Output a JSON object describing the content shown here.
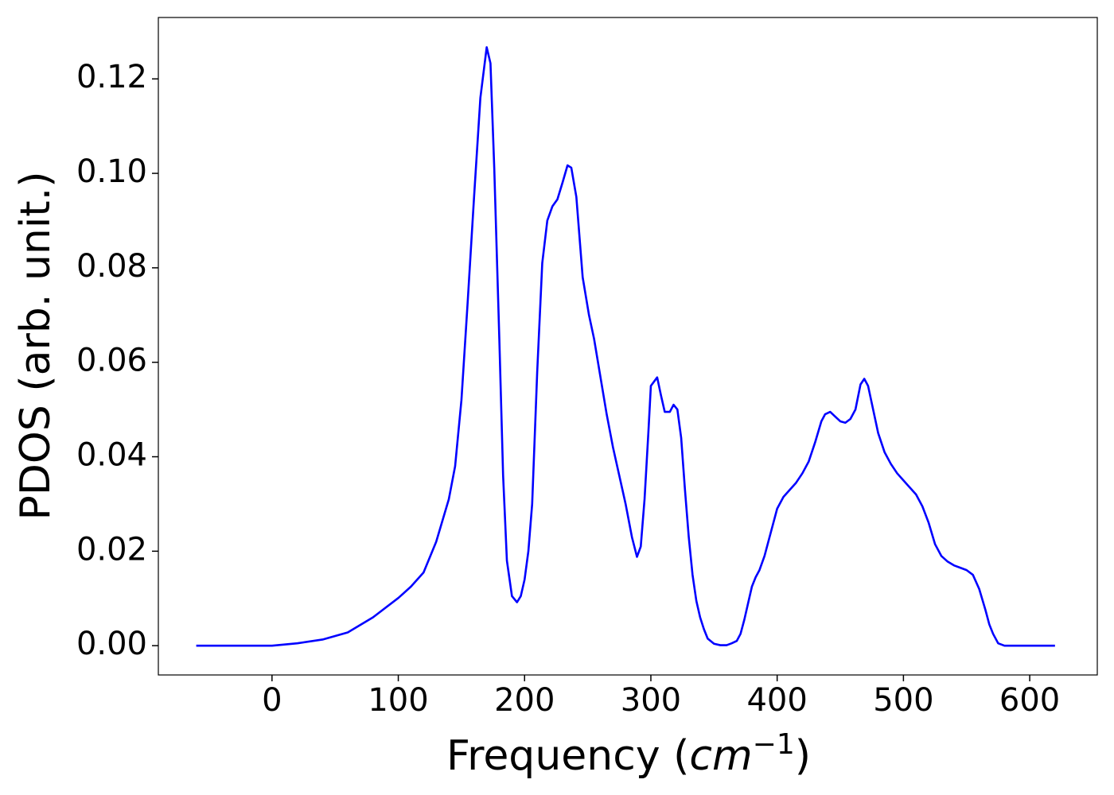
{
  "chart_data": {
    "type": "line",
    "xlabel": [
      "Frequency (",
      "cm",
      "−1",
      ")"
    ],
    "ylabel": "PDOS (arb. unit.)",
    "xlim": [
      -90,
      653.5
    ],
    "ylim": [
      -0.0062,
      0.133
    ],
    "xticks": [
      0,
      100,
      200,
      300,
      400,
      500,
      600
    ],
    "yticks": [
      {
        "value": 0,
        "label": "0.00"
      },
      {
        "value": 0.02,
        "label": "0.02"
      },
      {
        "value": 0.04,
        "label": "0.04"
      },
      {
        "value": 0.06,
        "label": "0.06"
      },
      {
        "value": 0.08,
        "label": "0.08"
      },
      {
        "value": 0.1,
        "label": "0.10"
      },
      {
        "value": 0.12,
        "label": "0.12"
      }
    ],
    "grid": false,
    "series": [
      {
        "color": "#0000ff",
        "x": [
          -60,
          0,
          20,
          40,
          60,
          80,
          100,
          110,
          120,
          130,
          140,
          145,
          150,
          155,
          160,
          165,
          170,
          173,
          176,
          180,
          183,
          186,
          190,
          194,
          197,
          200,
          203,
          206,
          210,
          214,
          218,
          222,
          226,
          230,
          234,
          237,
          241,
          246,
          251,
          255,
          260,
          265,
          270,
          280,
          285,
          289,
          292,
          295,
          298,
          300,
          305,
          308,
          311,
          315,
          318,
          321,
          324,
          327,
          330,
          333,
          336,
          339,
          342,
          345,
          350,
          355,
          360,
          364,
          368,
          371,
          374,
          377,
          380,
          383,
          386,
          390,
          395,
          400,
          405,
          410,
          415,
          420,
          425,
          430,
          435,
          438,
          442,
          446,
          450,
          454,
          458,
          462,
          466,
          469,
          472,
          476,
          480,
          485,
          490,
          495,
          500,
          505,
          510,
          515,
          520,
          525,
          530,
          535,
          540,
          545,
          550,
          555,
          560,
          565,
          568,
          571,
          575,
          580,
          600,
          620
        ],
        "values": [
          0,
          0,
          0.0005,
          0.0013,
          0.0028,
          0.006,
          0.0101,
          0.0125,
          0.0155,
          0.022,
          0.031,
          0.038,
          0.052,
          0.073,
          0.095,
          0.116,
          0.1267,
          0.1233,
          0.101,
          0.065,
          0.036,
          0.018,
          0.0105,
          0.0092,
          0.0105,
          0.014,
          0.02,
          0.03,
          0.058,
          0.081,
          0.09,
          0.093,
          0.0945,
          0.098,
          0.1017,
          0.1012,
          0.095,
          0.078,
          0.07,
          0.065,
          0.057,
          0.049,
          0.042,
          0.03,
          0.023,
          0.0188,
          0.021,
          0.031,
          0.045,
          0.055,
          0.0568,
          0.053,
          0.0495,
          0.0495,
          0.051,
          0.05,
          0.044,
          0.033,
          0.023,
          0.015,
          0.0095,
          0.006,
          0.0035,
          0.0015,
          0.0004,
          0.0001,
          0.0001,
          0.0005,
          0.001,
          0.0025,
          0.0055,
          0.009,
          0.0125,
          0.0145,
          0.016,
          0.019,
          0.024,
          0.029,
          0.0315,
          0.033,
          0.0345,
          0.0365,
          0.039,
          0.043,
          0.0475,
          0.049,
          0.0495,
          0.0485,
          0.0475,
          0.0472,
          0.048,
          0.05,
          0.0553,
          0.0565,
          0.055,
          0.05,
          0.045,
          0.041,
          0.0385,
          0.0365,
          0.035,
          0.0335,
          0.032,
          0.0295,
          0.026,
          0.0215,
          0.019,
          0.0178,
          0.017,
          0.0165,
          0.016,
          0.015,
          0.012,
          0.0075,
          0.0045,
          0.0025,
          0.0005,
          0,
          0,
          0
        ]
      }
    ]
  }
}
